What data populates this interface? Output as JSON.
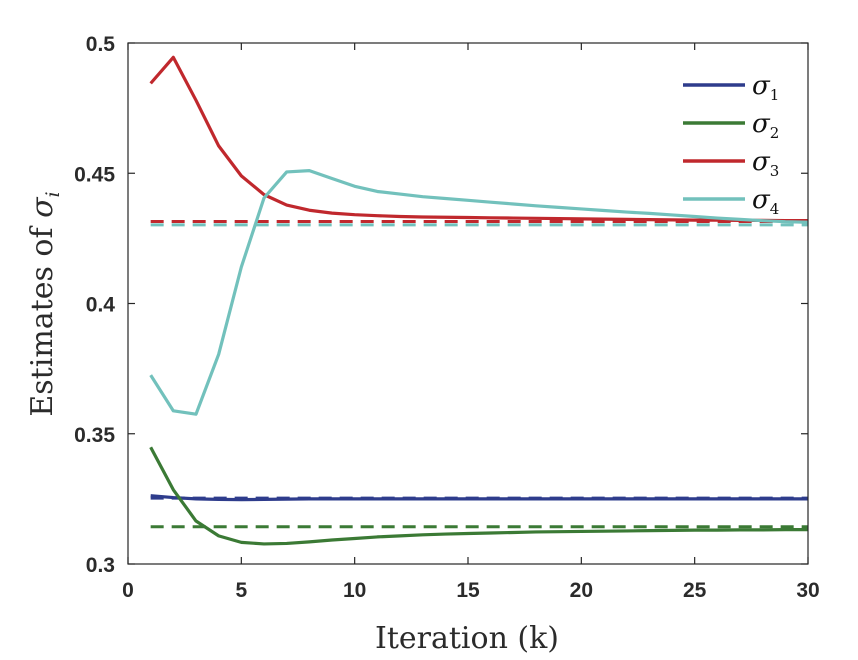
{
  "chart_data": {
    "type": "line",
    "title": "",
    "xlabel": "Iteration (k)",
    "ylabel_main": "Estimates of ",
    "ylabel_symbol": "σ",
    "ylabel_sub": "i",
    "xlim": [
      0,
      30
    ],
    "ylim": [
      0.3,
      0.5
    ],
    "xticks": [
      0,
      5,
      10,
      15,
      20,
      25,
      30
    ],
    "xtick_labels": [
      "0",
      "5",
      "10",
      "15",
      "20",
      "25",
      "30"
    ],
    "yticks": [
      0.3,
      0.35,
      0.4,
      0.45,
      0.5
    ],
    "ytick_labels": [
      "0.3",
      "0.35",
      "0.4",
      "0.45",
      "0.5"
    ],
    "grid": false,
    "legend_position": "top-right",
    "x": [
      1,
      2,
      3,
      4,
      5,
      6,
      7,
      8,
      9,
      10,
      11,
      12,
      13,
      14,
      15,
      16,
      17,
      18,
      19,
      20,
      21,
      22,
      23,
      24,
      25,
      26,
      27,
      28,
      29,
      30
    ],
    "series": [
      {
        "name": "σ1",
        "symbol": "σ",
        "sub": "1",
        "color": "#2e3c8c",
        "values": [
          0.3262,
          0.3255,
          0.325,
          0.3248,
          0.3247,
          0.3248,
          0.3249,
          0.325,
          0.325,
          0.325,
          0.325,
          0.325,
          0.325,
          0.325,
          0.325,
          0.325,
          0.325,
          0.325,
          0.325,
          0.325,
          0.325,
          0.325,
          0.325,
          0.325,
          0.325,
          0.325,
          0.325,
          0.325,
          0.325,
          0.325
        ]
      },
      {
        "name": "σ2",
        "symbol": "σ",
        "sub": "2",
        "color": "#3b7a35",
        "values": [
          0.3448,
          0.3285,
          0.3165,
          0.3108,
          0.3083,
          0.3077,
          0.3079,
          0.3085,
          0.3092,
          0.3098,
          0.3104,
          0.3108,
          0.3112,
          0.3115,
          0.3117,
          0.3119,
          0.3121,
          0.3123,
          0.3124,
          0.3125,
          0.3126,
          0.3127,
          0.3128,
          0.3129,
          0.313,
          0.313,
          0.3131,
          0.3131,
          0.3132,
          0.3132
        ]
      },
      {
        "name": "σ3",
        "symbol": "σ",
        "sub": "3",
        "color": "#c0282d",
        "values": [
          0.4845,
          0.4945,
          0.478,
          0.4605,
          0.449,
          0.4418,
          0.4378,
          0.4358,
          0.4347,
          0.4341,
          0.4337,
          0.4334,
          0.4332,
          0.4331,
          0.433,
          0.4329,
          0.4328,
          0.4327,
          0.4326,
          0.4325,
          0.4324,
          0.4323,
          0.4322,
          0.4321,
          0.432,
          0.432,
          0.4319,
          0.4319,
          0.4318,
          0.4318
        ]
      },
      {
        "name": "σ4",
        "symbol": "σ",
        "sub": "4",
        "color": "#72c1bc",
        "values": [
          0.3725,
          0.3588,
          0.3575,
          0.3805,
          0.414,
          0.4405,
          0.4505,
          0.451,
          0.448,
          0.445,
          0.443,
          0.442,
          0.441,
          0.4403,
          0.4396,
          0.4389,
          0.4382,
          0.4375,
          0.4369,
          0.4363,
          0.4357,
          0.4351,
          0.4346,
          0.434,
          0.4334,
          0.4328,
          0.4323,
          0.4318,
          0.4314,
          0.4312
        ]
      }
    ],
    "reference_lines": [
      {
        "name": "σ1 true",
        "color": "#2e3c8c",
        "value": 0.3253
      },
      {
        "name": "σ2 true",
        "color": "#3b7a35",
        "value": 0.3143
      },
      {
        "name": "σ3 true",
        "color": "#c0282d",
        "value": 0.4315
      },
      {
        "name": "σ4 true",
        "color": "#72c1bc",
        "value": 0.4302
      }
    ]
  }
}
